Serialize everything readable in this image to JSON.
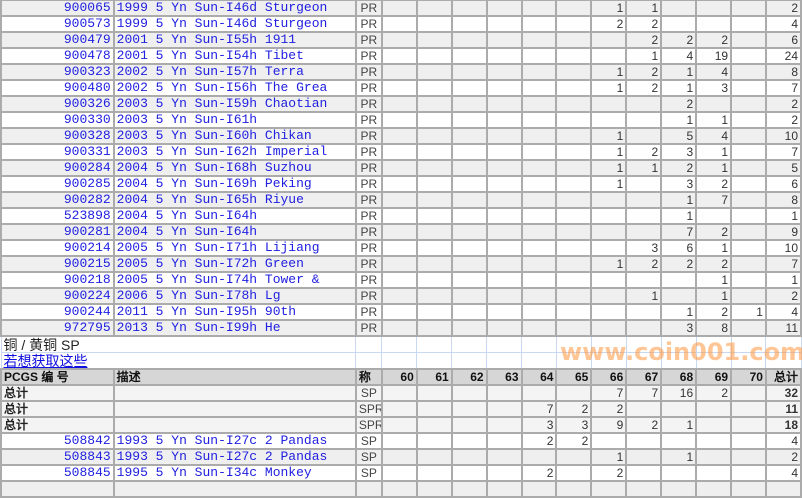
{
  "grades": [
    "60",
    "61",
    "62",
    "63",
    "64",
    "65",
    "66",
    "67",
    "68",
    "69",
    "70"
  ],
  "proof_rows": [
    {
      "pcgs": "900065",
      "desc": "1999 5 Yn Sun-I46d Sturgeon",
      "des": "PR",
      "v": {
        "66": 1,
        "67": 1
      },
      "total": 2
    },
    {
      "pcgs": "900573",
      "desc": "1999 5 Yn Sun-I46d Sturgeon",
      "des": "PR",
      "v": {
        "66": 2,
        "67": 2
      },
      "total": 4
    },
    {
      "pcgs": "900479",
      "desc": "2001 5 Yn Sun-I55h 1911",
      "des": "PR",
      "v": {
        "67": 2,
        "68": 2,
        "69": 2
      },
      "total": 6
    },
    {
      "pcgs": "900478",
      "desc": "2001 5 Yn Sun-I54h Tibet",
      "des": "PR",
      "v": {
        "67": 1,
        "68": 4,
        "69": 19
      },
      "total": 24
    },
    {
      "pcgs": "900323",
      "desc": "2002 5 Yn Sun-I57h Terra",
      "des": "PR",
      "v": {
        "66": 1,
        "67": 2,
        "68": 1,
        "69": 4
      },
      "total": 8
    },
    {
      "pcgs": "900480",
      "desc": "2002 5 Yn Sun-I56h The Grea",
      "des": "PR",
      "v": {
        "66": 1,
        "67": 2,
        "68": 1,
        "69": 3
      },
      "total": 7
    },
    {
      "pcgs": "900326",
      "desc": "2003 5 Yn Sun-I59h Chaotian",
      "des": "PR",
      "v": {
        "68": 2
      },
      "total": 2
    },
    {
      "pcgs": "900330",
      "desc": "2003 5 Yn Sun-I61h",
      "des": "PR",
      "v": {
        "68": 1,
        "69": 1
      },
      "total": 2
    },
    {
      "pcgs": "900328",
      "desc": "2003 5 Yn Sun-I60h Chikan",
      "des": "PR",
      "v": {
        "66": 1,
        "68": 5,
        "69": 4
      },
      "total": 10
    },
    {
      "pcgs": "900331",
      "desc": "2003 5 Yn Sun-I62h Imperial",
      "des": "PR",
      "v": {
        "66": 1,
        "67": 2,
        "68": 3,
        "69": 1
      },
      "total": 7
    },
    {
      "pcgs": "900284",
      "desc": "2004 5 Yn Sun-I68h Suzhou",
      "des": "PR",
      "v": {
        "66": 1,
        "67": 1,
        "68": 2,
        "69": 1
      },
      "total": 5
    },
    {
      "pcgs": "900285",
      "desc": "2004 5 Yn Sun-I69h Peking",
      "des": "PR",
      "v": {
        "66": 1,
        "68": 3,
        "69": 2
      },
      "total": 6
    },
    {
      "pcgs": "900282",
      "desc": "2004 5 Yn Sun-I65h Riyue",
      "des": "PR",
      "v": {
        "68": 1,
        "69": 7
      },
      "total": 8
    },
    {
      "pcgs": "523898",
      "desc": "2004 5 Yn Sun-I64h",
      "des": "PR",
      "v": {
        "68": 1
      },
      "total": 1
    },
    {
      "pcgs": "900281",
      "desc": "2004 5 Yn Sun-I64h",
      "des": "PR",
      "v": {
        "68": 7,
        "69": 2
      },
      "total": 9
    },
    {
      "pcgs": "900214",
      "desc": "2005 5 Yn Sun-I71h Lijiang",
      "des": "PR",
      "v": {
        "67": 3,
        "68": 6,
        "69": 1
      },
      "total": 10
    },
    {
      "pcgs": "900215",
      "desc": "2005 5 Yn Sun-I72h Green",
      "des": "PR",
      "v": {
        "66": 1,
        "67": 2,
        "68": 2,
        "69": 2
      },
      "total": 7
    },
    {
      "pcgs": "900218",
      "desc": "2005 5 Yn Sun-I74h Tower &",
      "des": "PR",
      "v": {
        "69": 1
      },
      "total": 1
    },
    {
      "pcgs": "900224",
      "desc": "2006 5 Yn Sun-I78h Lg",
      "des": "PR",
      "v": {
        "67": 1,
        "69": 1
      },
      "total": 2
    },
    {
      "pcgs": "900244",
      "desc": "2011 5 Yn Sun-I95h 90th",
      "des": "PR",
      "v": {
        "68": 1,
        "69": 2,
        "70": 1
      },
      "total": 4
    },
    {
      "pcgs": "972795",
      "desc": "2013 5 Yn Sun-I99h He",
      "des": "PR",
      "v": {
        "68": 3,
        "69": 8
      },
      "total": 11
    }
  ],
  "section": {
    "title": "铜 / 黄铜  SP",
    "link": "若想获取这些"
  },
  "header": {
    "pcgs": "PCGS 编 号",
    "desc": "描述",
    "des": "称",
    "total": "总计"
  },
  "summary_rows": [
    {
      "label": "总计",
      "des": "SP",
      "v": {
        "66": 7,
        "67": 7,
        "68": 16,
        "69": 2
      },
      "total": 32
    },
    {
      "label": "总计",
      "des": "SPR",
      "v": {
        "64": 7,
        "65": 2,
        "66": 2
      },
      "total": 11
    },
    {
      "label": "总计",
      "des": "SPR",
      "v": {
        "64": 3,
        "65": 3,
        "66": 9,
        "67": 2,
        "68": 1
      },
      "total": 18
    }
  ],
  "sp_rows": [
    {
      "pcgs": "508842",
      "desc": "1993 5 Yn Sun-I27c 2 Pandas",
      "des": "SP",
      "v": {
        "64": 2,
        "65": 2
      },
      "total": 4
    },
    {
      "pcgs": "508843",
      "desc": "1993 5 Yn Sun-I27c 2 Pandas",
      "des": "SP",
      "v": {
        "66": 1,
        "68": 1
      },
      "total": 2
    },
    {
      "pcgs": "508845",
      "desc": "1995 5 Yn Sun-I34c Monkey",
      "des": "SP",
      "v": {
        "64": 2,
        "66": 2
      },
      "total": 4
    }
  ],
  "watermark": "www.coin001.com"
}
